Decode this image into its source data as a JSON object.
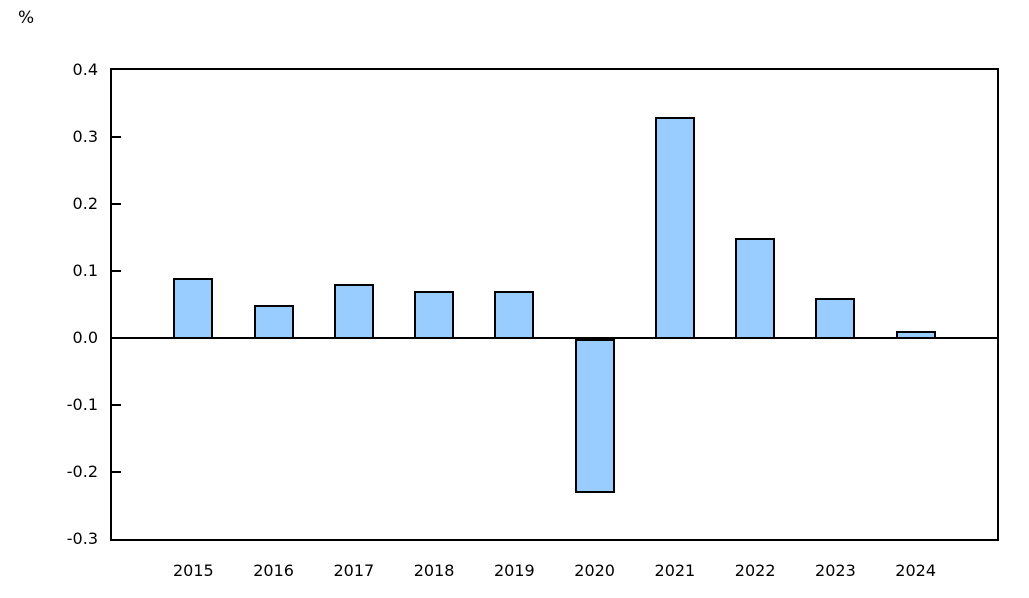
{
  "page": {
    "background_color": "#ffffff"
  },
  "chart_data": {
    "type": "bar",
    "title": "",
    "xlabel": "",
    "ylabel": "%",
    "categories": [
      "2015",
      "2016",
      "2017",
      "2018",
      "2019",
      "2020",
      "2021",
      "2022",
      "2023",
      "2024"
    ],
    "values": [
      0.09,
      0.05,
      0.08,
      0.07,
      0.07,
      -0.23,
      0.33,
      0.15,
      0.06,
      0.01
    ],
    "ylim": [
      -0.3,
      0.4
    ],
    "ytick_values": [
      0.4,
      0.3,
      0.2,
      0.1,
      0.0,
      -0.1,
      -0.2,
      -0.3
    ],
    "ytick_labels": [
      "0.4",
      "0.3",
      "0.2",
      "0.1",
      "0.0",
      "-0.1",
      "-0.2",
      "-0.3"
    ],
    "bar_fill_color": "#99ccff",
    "bar_border_color": "#000000",
    "axis_color": "#000000",
    "grid": "off",
    "legend": "none",
    "zero_line": true
  }
}
